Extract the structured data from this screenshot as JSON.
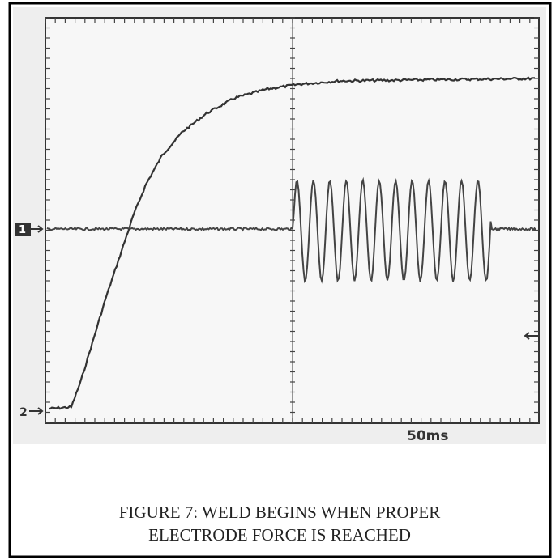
{
  "figure": {
    "channel_1_label": "1",
    "channel_2_label": "2",
    "timebase": "50ms",
    "caption": [
      "FIGURE 7:  WELD BEGINS WHEN PROPER",
      "ELECTRODE FORCE IS REACHED"
    ]
  }
}
